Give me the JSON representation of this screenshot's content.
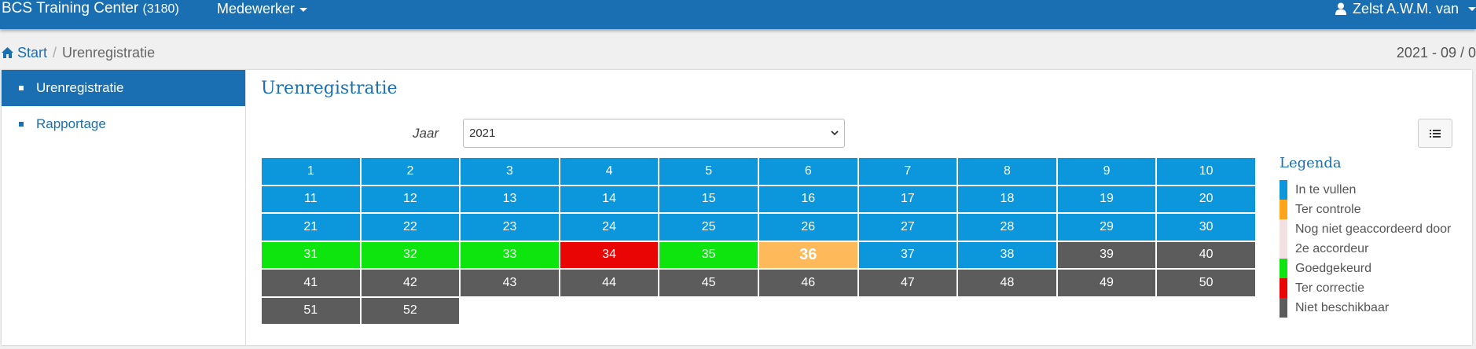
{
  "navbar": {
    "brand": "BCS Training Center",
    "brand_code": "(3180)",
    "menu_label": "Medewerker",
    "user_name": "Zelst A.W.M. van"
  },
  "breadcrumb": {
    "home": "Start",
    "separator": "/",
    "current": "Urenregistratie",
    "period": "2021 - 09 / 0"
  },
  "sidebar": {
    "items": [
      {
        "label": "Urenregistratie",
        "active": true
      },
      {
        "label": "Rapportage",
        "active": false
      }
    ]
  },
  "main": {
    "title": "Urenregistratie",
    "jaar_label": "Jaar",
    "jaar_value": "2021"
  },
  "weeks": [
    {
      "n": "1",
      "status": "fill"
    },
    {
      "n": "2",
      "status": "fill"
    },
    {
      "n": "3",
      "status": "fill"
    },
    {
      "n": "4",
      "status": "fill"
    },
    {
      "n": "5",
      "status": "fill"
    },
    {
      "n": "6",
      "status": "fill"
    },
    {
      "n": "7",
      "status": "fill"
    },
    {
      "n": "8",
      "status": "fill"
    },
    {
      "n": "9",
      "status": "fill"
    },
    {
      "n": "10",
      "status": "fill"
    },
    {
      "n": "11",
      "status": "fill"
    },
    {
      "n": "12",
      "status": "fill"
    },
    {
      "n": "13",
      "status": "fill"
    },
    {
      "n": "14",
      "status": "fill"
    },
    {
      "n": "15",
      "status": "fill"
    },
    {
      "n": "16",
      "status": "fill"
    },
    {
      "n": "17",
      "status": "fill"
    },
    {
      "n": "18",
      "status": "fill"
    },
    {
      "n": "19",
      "status": "fill"
    },
    {
      "n": "20",
      "status": "fill"
    },
    {
      "n": "21",
      "status": "fill"
    },
    {
      "n": "22",
      "status": "fill"
    },
    {
      "n": "23",
      "status": "fill"
    },
    {
      "n": "24",
      "status": "fill"
    },
    {
      "n": "25",
      "status": "fill"
    },
    {
      "n": "26",
      "status": "fill"
    },
    {
      "n": "27",
      "status": "fill"
    },
    {
      "n": "28",
      "status": "fill"
    },
    {
      "n": "29",
      "status": "fill"
    },
    {
      "n": "30",
      "status": "fill"
    },
    {
      "n": "31",
      "status": "ok"
    },
    {
      "n": "32",
      "status": "ok"
    },
    {
      "n": "33",
      "status": "ok"
    },
    {
      "n": "34",
      "status": "fix"
    },
    {
      "n": "35",
      "status": "ok"
    },
    {
      "n": "36",
      "status": "check"
    },
    {
      "n": "37",
      "status": "fill"
    },
    {
      "n": "38",
      "status": "fill"
    },
    {
      "n": "39",
      "status": "na"
    },
    {
      "n": "40",
      "status": "na"
    },
    {
      "n": "41",
      "status": "na"
    },
    {
      "n": "42",
      "status": "na"
    },
    {
      "n": "43",
      "status": "na"
    },
    {
      "n": "44",
      "status": "na"
    },
    {
      "n": "45",
      "status": "na"
    },
    {
      "n": "46",
      "status": "na"
    },
    {
      "n": "47",
      "status": "na"
    },
    {
      "n": "48",
      "status": "na"
    },
    {
      "n": "49",
      "status": "na"
    },
    {
      "n": "50",
      "status": "na"
    },
    {
      "n": "51",
      "status": "na"
    },
    {
      "n": "52",
      "status": "na"
    }
  ],
  "legend": {
    "title": "Legenda",
    "items": [
      {
        "label": "In te vullen",
        "color": "#0c96dc"
      },
      {
        "label": "Ter controle",
        "color": "#ffa41b"
      },
      {
        "label": "Nog niet geaccordeerd door 2e accordeur",
        "color": "#f3e0e3"
      },
      {
        "label": "Goedgekeurd",
        "color": "#0ee40e"
      },
      {
        "label": "Ter correctie",
        "color": "#ea0505"
      },
      {
        "label": "Niet beschikbaar",
        "color": "#5c5c5c"
      }
    ]
  }
}
